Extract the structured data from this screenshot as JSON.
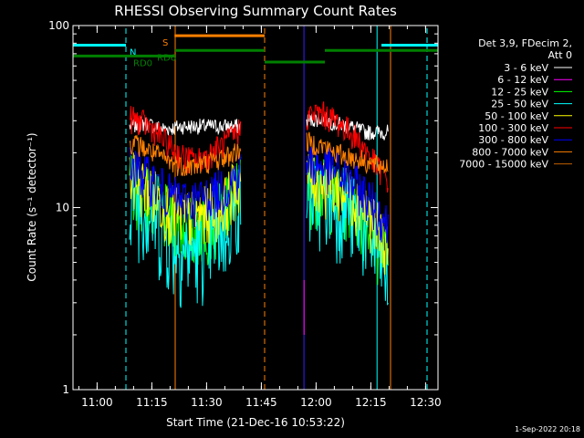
{
  "chart_data": {
    "type": "line",
    "title": "RHESSI Observing Summary Count Rates",
    "xlabel": "Start Time (21-Dec-16 10:53:22)",
    "ylabel": "Count Rate (s⁻¹ detector⁻¹)",
    "x_unit": "minutes after 10:53:22",
    "xlim": [
      0,
      100
    ],
    "ylim": [
      1,
      100
    ],
    "y_scale": "log",
    "grid": false,
    "legend_position": "right",
    "footer": "1-Sep-2022 20:18",
    "x_ticks": [
      {
        "label": "11:00",
        "value": 6.6
      },
      {
        "label": "11:15",
        "value": 21.6
      },
      {
        "label": "11:30",
        "value": 36.6
      },
      {
        "label": "11:45",
        "value": 51.6
      },
      {
        "label": "12:00",
        "value": 66.6
      },
      {
        "label": "12:15",
        "value": 81.6
      },
      {
        "label": "12:30",
        "value": 96.6
      }
    ],
    "y_ticks": [
      {
        "label": "1",
        "value": 1
      },
      {
        "label": "10",
        "value": 10
      },
      {
        "label": "100",
        "value": 100
      }
    ],
    "legend_header": [
      "Det 3,9, FDecim 2,",
      "Att 0"
    ],
    "series": [
      {
        "name": "3 - 6 keV",
        "color": "#ffffff",
        "segments": [
          {
            "x": [
              15.5,
              20,
              25,
              30,
              35,
              40,
              46
            ],
            "y": [
              28,
              29,
              27,
              28,
              28,
              28,
              28
            ]
          },
          {
            "x": [
              64,
              68,
              72,
              76,
              80,
              86.5
            ],
            "y": [
              30,
              31,
              29,
              28,
              26,
              26
            ]
          }
        ]
      },
      {
        "name": "6 - 12 keV",
        "color": "#ff00ff",
        "segments": [
          {
            "x": [
              63.3,
              63.3
            ],
            "y": [
              2.0,
              4.0
            ]
          }
        ]
      },
      {
        "name": "12 - 25 keV",
        "color": "#00ff00",
        "segments": [
          {
            "x": [
              15.5,
              18,
              22,
              26,
              30,
              34,
              38,
              42,
              46
            ],
            "y": [
              14,
              13,
              11,
              9,
              8,
              8,
              9,
              10,
              14
            ]
          },
          {
            "x": [
              64,
              68,
              72,
              76,
              80,
              83,
              86.5
            ],
            "y": [
              14,
              13,
              12,
              11,
              9,
              7,
              5
            ]
          }
        ]
      },
      {
        "name": "25 - 50 keV",
        "color": "#00ffff",
        "segments": [
          {
            "x": [
              15.5,
              18,
              22,
              26,
              30,
              34,
              38,
              42,
              46
            ],
            "y": [
              13,
              11,
              9,
              7,
              6,
              6,
              7,
              8,
              12
            ]
          },
          {
            "x": [
              64,
              68,
              72,
              76,
              80,
              83,
              86.5
            ],
            "y": [
              12,
              12,
              11,
              10,
              8,
              6,
              4
            ]
          }
        ]
      },
      {
        "name": "50 - 100 keV",
        "color": "#ffff00",
        "segments": [
          {
            "x": [
              15.5,
              18,
              22,
              26,
              30,
              34,
              38,
              42,
              46
            ],
            "y": [
              15,
              14,
              12,
              10,
              9,
              9,
              10,
              11,
              15
            ]
          },
          {
            "x": [
              64,
              68,
              72,
              76,
              80,
              83,
              86.5
            ],
            "y": [
              15,
              14,
              13,
              12,
              10,
              8,
              6
            ]
          }
        ]
      },
      {
        "name": "100 - 300 keV",
        "color": "#ff0000",
        "segments": [
          {
            "x": [
              15.5,
              18,
              22,
              26,
              30,
              34,
              38,
              42,
              46
            ],
            "y": [
              31,
              30,
              27,
              22,
              19,
              18,
              20,
              23,
              27
            ]
          },
          {
            "x": [
              64,
              68,
              72,
              76,
              80,
              83,
              86.5
            ],
            "y": [
              32,
              33,
              30,
              26,
              21,
              17,
              14
            ]
          }
        ]
      },
      {
        "name": "300 - 800 keV",
        "color": "#0000ff",
        "segments": [
          {
            "x": [
              15.5,
              18,
              22,
              26,
              30,
              34,
              38,
              42,
              46
            ],
            "y": [
              17,
              16,
              14,
              12,
              11,
              11,
              12,
              13,
              16
            ]
          },
          {
            "x": [
              64,
              68,
              72,
              76,
              80,
              83,
              86.5
            ],
            "y": [
              18,
              17,
              16,
              14,
              12,
              10,
              8
            ]
          }
        ]
      },
      {
        "name": "800 - 7000 keV",
        "color": "#ff8000",
        "segments": [
          {
            "x": [
              15.5,
              18,
              22,
              26,
              30,
              34,
              38,
              42,
              46
            ],
            "y": [
              23,
              22,
              20,
              18,
              17,
              17,
              18,
              19,
              21
            ]
          },
          {
            "x": [
              64,
              68,
              72,
              76,
              80,
              83,
              86.5
            ],
            "y": [
              23,
              22,
              20,
              19,
              18,
              17,
              17
            ]
          }
        ]
      },
      {
        "name": "7000 - 15000 keV",
        "color": "#c06000",
        "segments": []
      }
    ],
    "state_flags": [
      {
        "label": "N",
        "color": "#00ffff",
        "level": 78,
        "segments": [
          [
            0,
            14.5
          ],
          [
            84.5,
            100
          ]
        ],
        "label_x": 15.5
      },
      {
        "label": "S",
        "color": "#ff8000",
        "level": 88,
        "segments": [
          [
            27.8,
            52.5
          ]
        ],
        "label_x": 24.5
      },
      {
        "label": "RD0",
        "color": "#008000",
        "level": 68,
        "segments": [
          [
            0,
            28
          ]
        ],
        "label_x": 16.5
      },
      {
        "label": "RD6",
        "color": "#008000",
        "level": 73,
        "segments": [
          [
            28,
            52.5
          ],
          [
            69,
            100
          ]
        ],
        "label_x": 23
      },
      {
        "label": "",
        "color": "#008000",
        "level": 63,
        "segments": [
          [
            52.5,
            69
          ]
        ],
        "label_x": 52.5
      }
    ],
    "markers": [
      {
        "x": 14.5,
        "color": "#00ffff",
        "style": "dashed"
      },
      {
        "x": 28.0,
        "color": "#ff8000",
        "style": "solid"
      },
      {
        "x": 52.5,
        "color": "#ff8000",
        "style": "dashed"
      },
      {
        "x": 63.3,
        "color": "#ff8000",
        "style": "solid",
        "ymax": 100
      },
      {
        "x": 63.3,
        "color": "#0000ff",
        "style": "solid"
      },
      {
        "x": 83.3,
        "color": "#00ffff",
        "style": "solid"
      },
      {
        "x": 87.0,
        "color": "#ff8000",
        "style": "solid"
      },
      {
        "x": 97.0,
        "color": "#00ffff",
        "style": "dashed"
      }
    ]
  }
}
